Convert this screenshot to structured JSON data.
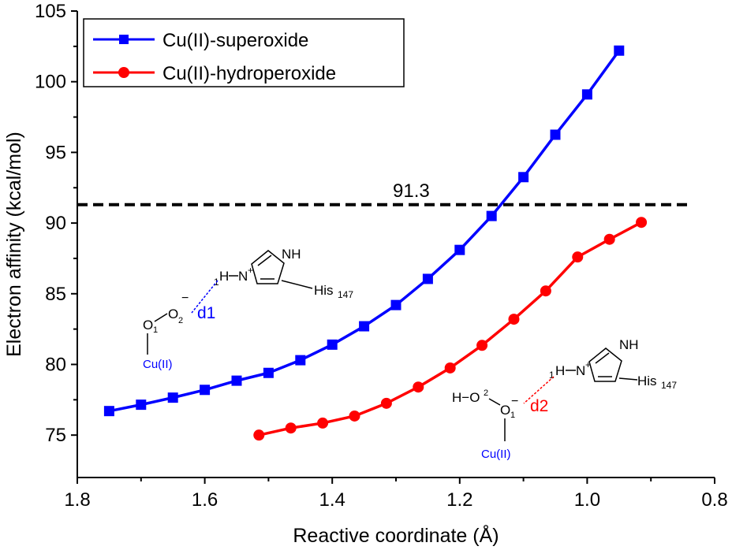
{
  "chart_data": {
    "type": "line",
    "xlabel": "Reactive coordinate (Å)",
    "ylabel": "Electron affinity (kcal/mol)",
    "xlim": [
      1.8,
      0.8
    ],
    "ylim": [
      72,
      105
    ],
    "x_reversed": true,
    "xticks": [
      "1.8",
      "1.6",
      "1.4",
      "1.2",
      "1.0",
      "0.8"
    ],
    "yticks": [
      "75",
      "80",
      "85",
      "90",
      "95",
      "100",
      "105"
    ],
    "legend_position": "top-left",
    "series": [
      {
        "name": "Cu(II)-superoxide",
        "color": "#0000ff",
        "marker": "square",
        "x": [
          1.75,
          1.7,
          1.65,
          1.6,
          1.55,
          1.5,
          1.45,
          1.4,
          1.35,
          1.3,
          1.25,
          1.2,
          1.15,
          1.1,
          1.05,
          1.0,
          0.95
        ],
        "y": [
          76.7,
          77.15,
          77.65,
          78.2,
          78.85,
          79.4,
          80.3,
          81.4,
          82.7,
          84.2,
          86.05,
          88.1,
          90.5,
          93.25,
          96.25,
          99.1,
          102.2
        ]
      },
      {
        "name": "Cu(II)-hydroperoxide",
        "color": "#ff0000",
        "marker": "circle",
        "x": [
          1.515,
          1.465,
          1.415,
          1.365,
          1.315,
          1.265,
          1.215,
          1.165,
          1.115,
          1.065,
          1.015,
          0.965,
          0.915
        ],
        "y": [
          75.0,
          75.5,
          75.85,
          76.35,
          77.25,
          78.4,
          79.75,
          81.35,
          83.2,
          85.2,
          87.6,
          88.85,
          90.05
        ]
      }
    ],
    "reference_line": {
      "y": 91.3,
      "label": "91.3",
      "color": "#000000",
      "style": "dashed"
    }
  },
  "annotations": {
    "left_structure": {
      "nh": "NH",
      "h": "H",
      "n_plus": "N",
      "plus": "+",
      "his": "His",
      "his_sub": "147",
      "atom1": "1",
      "o1": "O",
      "o1_sub": "1",
      "o2": "O",
      "o2_sub": "2",
      "minus": "−",
      "distance": "d1",
      "cu": "Cu(II)"
    },
    "right_structure": {
      "nh": "NH",
      "h": "H",
      "n_plus": "N",
      "plus": "+",
      "his": "His",
      "his_sub": "147",
      "atom1": "1",
      "h_o": "H−O",
      "o2_sup": "2",
      "o1": "O",
      "o1_sub": "1",
      "minus": "−",
      "distance": "d2",
      "cu": "Cu(II)"
    }
  }
}
